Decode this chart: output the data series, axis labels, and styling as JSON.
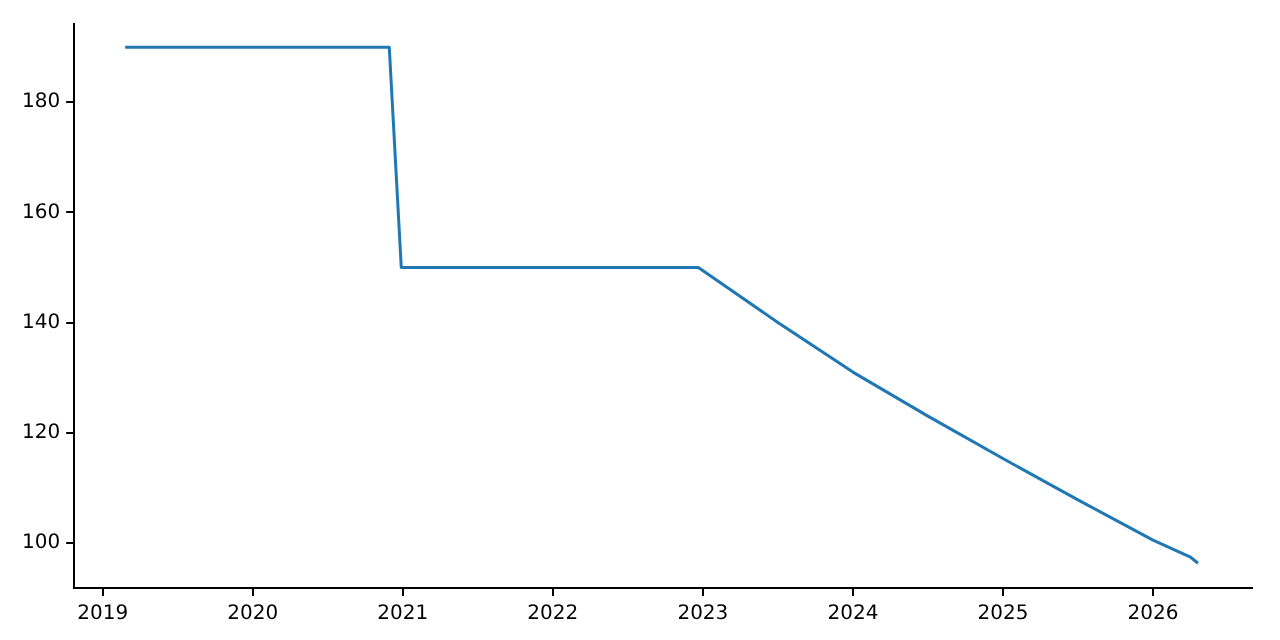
{
  "chart_data": {
    "type": "line",
    "x": [
      2019.15,
      2020.91,
      2020.99,
      2022.97,
      2023.5,
      2024.0,
      2024.5,
      2025.0,
      2025.5,
      2026.0,
      2026.25,
      2026.3
    ],
    "series": [
      {
        "color": "#1f77b4",
        "values": [
          190,
          190,
          150,
          150,
          140,
          131,
          123,
          115.3,
          107.8,
          100.5,
          97.4,
          96.3
        ]
      }
    ],
    "xlim": [
      2018.81,
      2026.66
    ],
    "xticks": [
      2019,
      2020,
      2021,
      2022,
      2023,
      2024,
      2025,
      2026
    ],
    "ylim": [
      91.8,
      194.2
    ],
    "yticks": [
      100,
      120,
      140,
      160,
      180
    ],
    "grid": false,
    "legend": false,
    "marker": "none",
    "line_style": "solid"
  }
}
